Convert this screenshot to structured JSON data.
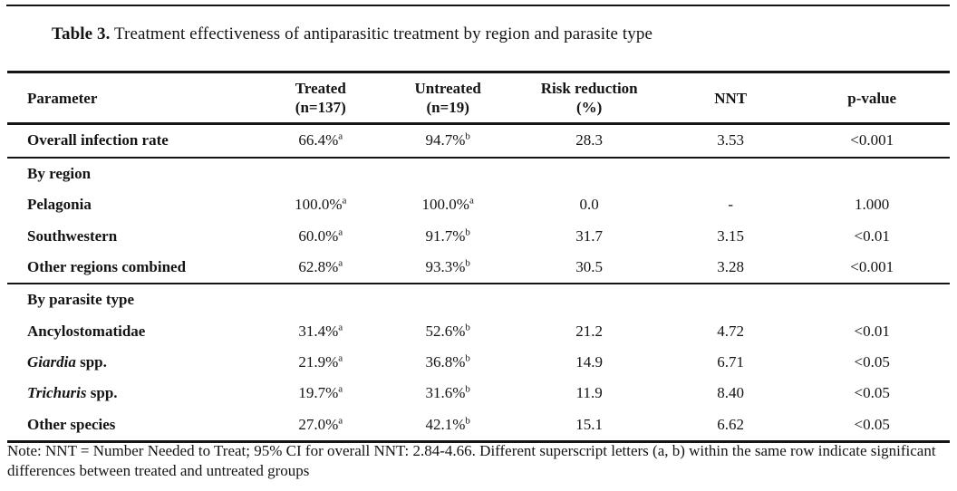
{
  "page": {
    "caption_label": "Table 3.",
    "caption_text": " Treatment effectiveness of antiparasitic treatment by region and parasite type",
    "note_text": "Note: NNT = Number Needed to Treat; 95% CI for overall NNT: 2.84-4.66. Different superscript letters (a, b) within the same row indicate significant differences between treated and untreated groups"
  },
  "colors": {
    "text": "#141414",
    "rule": "#141414",
    "background": "#ffffff"
  },
  "table": {
    "header": [
      {
        "line1": "Parameter",
        "line2": ""
      },
      {
        "line1": "Treated",
        "line2": "(n=137)"
      },
      {
        "line1": "Untreated",
        "line2": "(n=19)"
      },
      {
        "line1": "Risk reduction",
        "line2": "(%)"
      },
      {
        "line1": "NNT",
        "line2": ""
      },
      {
        "line1": "p-value",
        "line2": ""
      }
    ],
    "rows": [
      {
        "type": "data",
        "param": [
          {
            "text": "Overall infection rate",
            "italic": false
          }
        ],
        "treated": {
          "value": "66.4%",
          "sup": "a"
        },
        "untreated": {
          "value": "94.7%",
          "sup": "b"
        },
        "risk": "28.3",
        "nnt": "3.53",
        "p": "<0.001"
      },
      {
        "type": "section",
        "param": [
          {
            "text": "By region",
            "italic": false
          }
        ]
      },
      {
        "type": "data",
        "param": [
          {
            "text": "Pelagonia",
            "italic": false
          }
        ],
        "treated": {
          "value": "100.0%",
          "sup": "a"
        },
        "untreated": {
          "value": "100.0%",
          "sup": "a"
        },
        "risk": "0.0",
        "nnt": "-",
        "p": "1.000"
      },
      {
        "type": "data",
        "param": [
          {
            "text": "Southwestern",
            "italic": false
          }
        ],
        "treated": {
          "value": "60.0%",
          "sup": "a"
        },
        "untreated": {
          "value": "91.7%",
          "sup": "b"
        },
        "risk": "31.7",
        "nnt": "3.15",
        "p": "<0.01"
      },
      {
        "type": "data",
        "param": [
          {
            "text": "Other regions combined",
            "italic": false
          }
        ],
        "treated": {
          "value": "62.8%",
          "sup": "a"
        },
        "untreated": {
          "value": "93.3%",
          "sup": "b"
        },
        "risk": "30.5",
        "nnt": "3.28",
        "p": "<0.001"
      },
      {
        "type": "section",
        "param": [
          {
            "text": "By parasite type",
            "italic": false
          }
        ]
      },
      {
        "type": "data",
        "param": [
          {
            "text": "Ancylostomatidae",
            "italic": false
          }
        ],
        "treated": {
          "value": "31.4%",
          "sup": "a"
        },
        "untreated": {
          "value": "52.6%",
          "sup": "b"
        },
        "risk": "21.2",
        "nnt": "4.72",
        "p": "<0.01"
      },
      {
        "type": "data",
        "param": [
          {
            "text": "Giardia",
            "italic": true
          },
          {
            "text": " spp.",
            "italic": false
          }
        ],
        "treated": {
          "value": "21.9%",
          "sup": "a"
        },
        "untreated": {
          "value": "36.8%",
          "sup": "b"
        },
        "risk": "14.9",
        "nnt": "6.71",
        "p": "<0.05"
      },
      {
        "type": "data",
        "param": [
          {
            "text": "Trichuris",
            "italic": true
          },
          {
            "text": " spp.",
            "italic": false
          }
        ],
        "treated": {
          "value": "19.7%",
          "sup": "a"
        },
        "untreated": {
          "value": "31.6%",
          "sup": "b"
        },
        "risk": "11.9",
        "nnt": "8.40",
        "p": "<0.05"
      },
      {
        "type": "data",
        "param": [
          {
            "text": "Other species",
            "italic": false
          }
        ],
        "treated": {
          "value": "27.0%",
          "sup": "a"
        },
        "untreated": {
          "value": "42.1%",
          "sup": "b"
        },
        "risk": "15.1",
        "nnt": "6.62",
        "p": "<0.05"
      }
    ]
  }
}
